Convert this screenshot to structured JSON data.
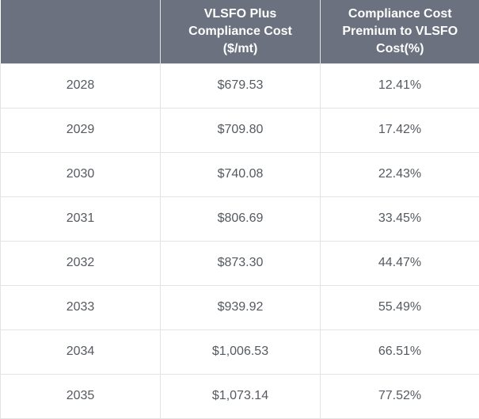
{
  "table": {
    "headers": [
      {
        "lines": [
          ""
        ]
      },
      {
        "lines": [
          "VLSFO Plus",
          "Compliance Cost",
          "($/mt)"
        ]
      },
      {
        "lines": [
          "Compliance Cost",
          "Premium to VLSFO",
          "Cost(%)"
        ]
      }
    ],
    "rows": [
      {
        "year": "2028",
        "cost": "$679.53",
        "premium": "12.41%"
      },
      {
        "year": "2029",
        "cost": "$709.80",
        "premium": "17.42%"
      },
      {
        "year": "2030",
        "cost": "$740.08",
        "premium": "22.43%"
      },
      {
        "year": "2031",
        "cost": "$806.69",
        "premium": "33.45%"
      },
      {
        "year": "2032",
        "cost": "$873.30",
        "premium": "44.47%"
      },
      {
        "year": "2033",
        "cost": "$939.92",
        "premium": "55.49%"
      },
      {
        "year": "2034",
        "cost": "$1,006.53",
        "premium": "66.51%"
      },
      {
        "year": "2035",
        "cost": "$1,073.14",
        "premium": "77.52%"
      }
    ]
  },
  "colors": {
    "header_bg": "#6b717e",
    "header_text": "#ffffff",
    "cell_text": "#555a60",
    "grid": "#e3e3e3"
  }
}
